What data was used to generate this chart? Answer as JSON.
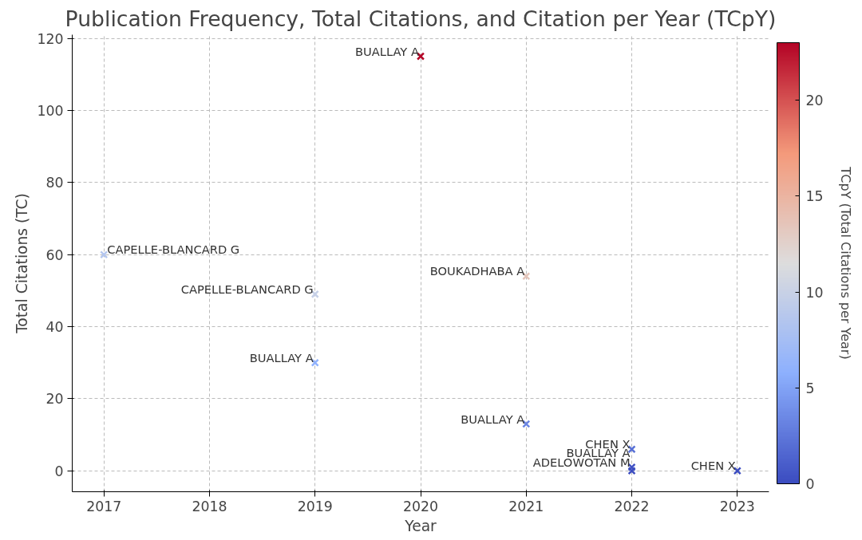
{
  "chart_data": {
    "type": "scatter",
    "title": "Publication Frequency, Total Citations, and Citation per Year (TCpY)",
    "xlabel": "Year",
    "ylabel": "Total Citations (TC)",
    "clabel": "TCpY (Total Citations per Year)",
    "x": [
      2017,
      2019,
      2019,
      2020,
      2021,
      2021,
      2022,
      2022,
      2022,
      2023
    ],
    "values": [
      60,
      49,
      30,
      115,
      54,
      13,
      6,
      1,
      0,
      0
    ],
    "cvalues": [
      8.6,
      9.8,
      6,
      23,
      13.5,
      3.25,
      2,
      0.33,
      0,
      0
    ],
    "clim": [
      0,
      23
    ],
    "cticks": [
      0,
      5,
      10,
      15,
      20
    ],
    "xlim": [
      2016.7,
      2023.3
    ],
    "ylim": [
      -5.8,
      121
    ],
    "xticks": [
      2017,
      2018,
      2019,
      2020,
      2021,
      2022,
      2023
    ],
    "yticks": [
      0,
      20,
      40,
      60,
      80,
      100,
      120
    ],
    "marker": "cross",
    "grid": true,
    "annotations": [
      {
        "text": "CAPELLE-BLANCARD G",
        "x": 2017,
        "y": 60
      },
      {
        "text": "CAPELLE-BLANCARD G",
        "x": 2019,
        "y": 49
      },
      {
        "text": "BUALLAY A",
        "x": 2019,
        "y": 30
      },
      {
        "text": "BUALLAY A",
        "x": 2020,
        "y": 115
      },
      {
        "text": "BOUKADHABA A",
        "x": 2021,
        "y": 54
      },
      {
        "text": "BUALLAY A",
        "x": 2021,
        "y": 13
      },
      {
        "text": "CHEN X",
        "x": 2022,
        "y": 6
      },
      {
        "text": "ADELOWOTAN M",
        "x": 2022,
        "y": 1
      },
      {
        "text": "BUALLAY A",
        "x": 2022,
        "y": 0
      },
      {
        "text": "CHEN X",
        "x": 2023,
        "y": 0
      }
    ]
  }
}
